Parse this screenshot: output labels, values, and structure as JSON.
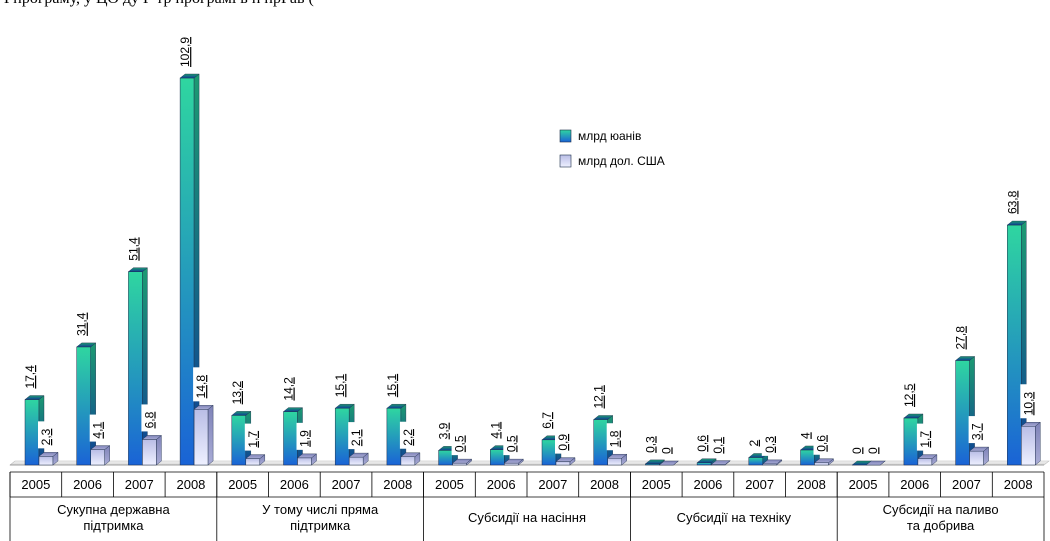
{
  "caption_text": "Гпрограму, у ЦО ду Г тр програмі в п   прРав (",
  "chart_data": {
    "type": "bar",
    "ylim": [
      0,
      110
    ],
    "grid": false,
    "legend_position": "top-right",
    "legend": [
      "млрд юанів",
      "млрд дол. США"
    ],
    "colors": {
      "yuan_top": "#2fd6a0",
      "yuan_bottom": "#1a63d6",
      "usd_top": "#c9cde8",
      "usd_bottom": "#eef0ff"
    },
    "groups": [
      {
        "label_lines": [
          "Сукупна державна",
          "підтримка"
        ],
        "years": [
          "2005",
          "2006",
          "2007",
          "2008"
        ],
        "yuan": [
          17.4,
          31.4,
          51.4,
          102.9
        ],
        "usd": [
          2.3,
          4.1,
          6.8,
          14.8
        ],
        "yuan_labels": [
          "17,4",
          "31,4",
          "51,4",
          "102,9"
        ],
        "usd_labels": [
          "2,3",
          "4,1",
          "6,8",
          "14,8"
        ]
      },
      {
        "label_lines": [
          "У тому числі пряма",
          "підтримка"
        ],
        "years": [
          "2005",
          "2006",
          "2007",
          "2008"
        ],
        "yuan": [
          13.2,
          14.2,
          15.1,
          15.1
        ],
        "usd": [
          1.7,
          1.9,
          2.1,
          2.2
        ],
        "yuan_labels": [
          "13,2",
          "14,2",
          "15,1",
          "15,1"
        ],
        "usd_labels": [
          "1,7",
          "1,9",
          "2,1",
          "2,2"
        ]
      },
      {
        "label_lines": [
          "Субсидії на насіння"
        ],
        "years": [
          "2005",
          "2006",
          "2007",
          "2008"
        ],
        "yuan": [
          3.9,
          4.1,
          6.7,
          12.1
        ],
        "usd": [
          0.5,
          0.5,
          0.9,
          1.8
        ],
        "yuan_labels": [
          "3,9",
          "4,1",
          "6,7",
          "12,1"
        ],
        "usd_labels": [
          "0,5",
          "0,5",
          "0,9",
          "1,8"
        ]
      },
      {
        "label_lines": [
          "Субсидії на техніку"
        ],
        "years": [
          "2005",
          "2006",
          "2007",
          "2008"
        ],
        "yuan": [
          0.3,
          0.6,
          2,
          4
        ],
        "usd": [
          0,
          0.1,
          0.3,
          0.6
        ],
        "yuan_labels": [
          "0,3",
          "0,6",
          "2",
          "4"
        ],
        "usd_labels": [
          "0",
          "0,1",
          "0,3",
          "0,6"
        ]
      },
      {
        "label_lines": [
          "Субсидії на паливо",
          "та добрива"
        ],
        "years": [
          "2005",
          "2006",
          "2007",
          "2008"
        ],
        "yuan": [
          0,
          12.5,
          27.8,
          63.8
        ],
        "usd": [
          0,
          1.7,
          3.7,
          10.3
        ],
        "yuan_labels": [
          "0",
          "12,5",
          "27,8",
          "63,8"
        ],
        "usd_labels": [
          "0",
          "1,7",
          "3,7",
          "10,3"
        ]
      }
    ]
  }
}
